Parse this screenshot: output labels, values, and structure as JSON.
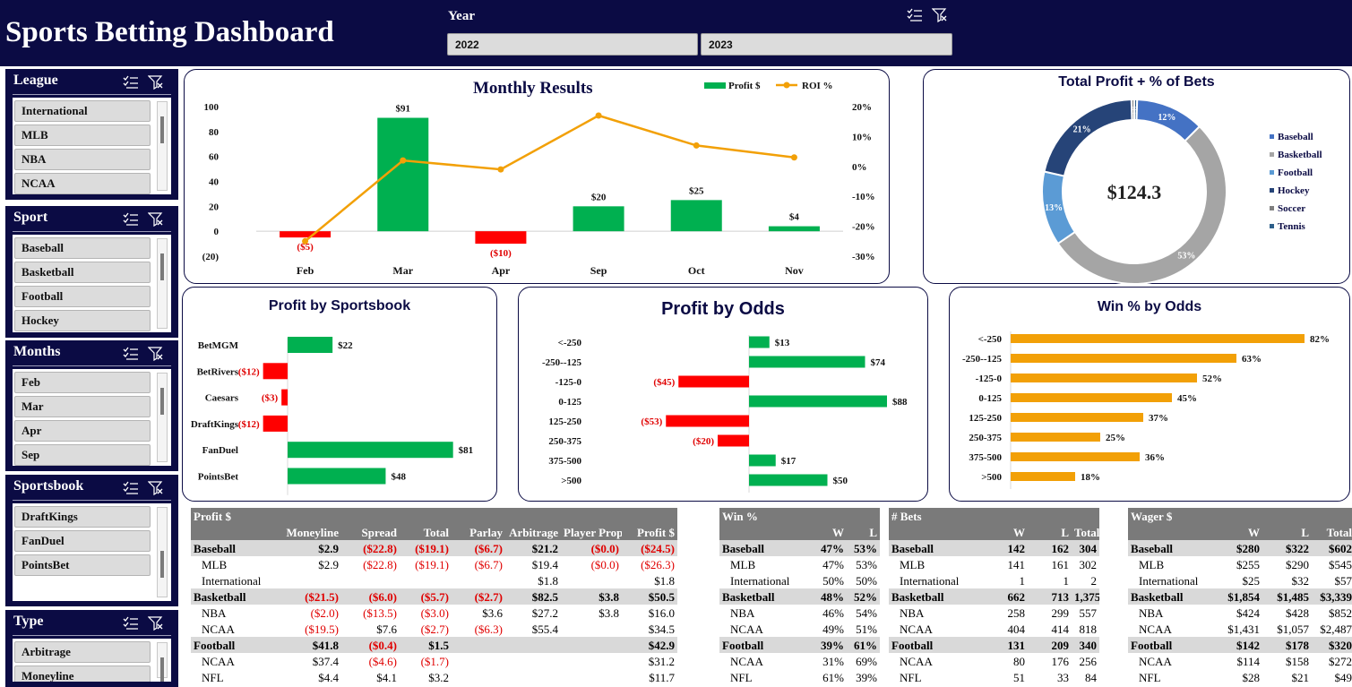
{
  "dashboard": {
    "title": "Sports Betting Dashboard"
  },
  "year_slicer": {
    "label": "Year",
    "options": [
      "2022",
      "2023"
    ]
  },
  "slicers": [
    {
      "id": "league",
      "title": "League",
      "items": [
        "International",
        "MLB",
        "NBA",
        "NCAA"
      ]
    },
    {
      "id": "sport",
      "title": "Sport",
      "items": [
        "Baseball",
        "Basketball",
        "Football",
        "Hockey"
      ]
    },
    {
      "id": "months",
      "title": "Months",
      "items": [
        "Feb",
        "Mar",
        "Apr",
        "Sep"
      ]
    },
    {
      "id": "sportsbook",
      "title": "Sportsbook",
      "items": [
        "DraftKings",
        "FanDuel",
        "PointsBet"
      ]
    },
    {
      "id": "type",
      "title": "Type",
      "items": [
        "Arbitrage",
        "Moneyline"
      ]
    }
  ],
  "colors": {
    "navy": "#0b0b44",
    "green": "#00b050",
    "red": "#ff0000",
    "orange": "#f2a007",
    "grey": "#7a7a7a"
  },
  "icons": [
    "multi-select-icon",
    "clear-filter-icon"
  ],
  "chart_data": [
    {
      "id": "monthly_results",
      "type": "bar",
      "title": "Monthly Results",
      "categories": [
        "Feb",
        "Mar",
        "Apr",
        "Sep",
        "Oct",
        "Nov"
      ],
      "series": [
        {
          "name": "Profit $",
          "type": "bar",
          "values": [
            -5,
            91,
            -10,
            20,
            25,
            4
          ],
          "labels": [
            "($5)",
            "$91",
            "($10)",
            "$20",
            "$25",
            "$4"
          ]
        },
        {
          "name": "ROI %",
          "type": "line",
          "axis": "secondary",
          "values": [
            -25,
            2,
            -1,
            17,
            7,
            3
          ]
        }
      ],
      "ylim": [
        -20,
        100
      ],
      "yticks": [
        "(20)",
        "0",
        "20",
        "40",
        "60",
        "80",
        "100"
      ],
      "y2lim": [
        -30,
        20
      ],
      "y2ticks": [
        "-30%",
        "-20%",
        "-10%",
        "0%",
        "10%",
        "20%"
      ],
      "legend": "top-right"
    },
    {
      "id": "total_profit",
      "type": "pie",
      "title": "Total Profit + % of Bets",
      "center_label": "$124.3",
      "categories": [
        "Baseball",
        "Basketball",
        "Football",
        "Hockey",
        "Soccer",
        "Tennis"
      ],
      "values": [
        12,
        53,
        13,
        21,
        0.5,
        0.5
      ],
      "labels": [
        "12%",
        "53%",
        "13%",
        "21%",
        "1%",
        "1%"
      ],
      "colors": [
        "#4472c4",
        "#a5a5a5",
        "#5b9bd5",
        "#264478",
        "#7f7f7f",
        "#2e5f8a"
      ],
      "legend": "right"
    },
    {
      "id": "profit_by_sportsbook",
      "type": "bar",
      "orientation": "horizontal",
      "title": "Profit by Sportsbook",
      "categories": [
        "BetMGM",
        "BetRivers",
        "Caesars",
        "DraftKings",
        "FanDuel",
        "PointsBet"
      ],
      "values": [
        22,
        -12,
        -3,
        -12,
        81,
        48
      ],
      "labels": [
        "$22",
        "($12)",
        "($3)",
        "($12)",
        "$81",
        "$48"
      ]
    },
    {
      "id": "profit_by_odds",
      "type": "bar",
      "orientation": "horizontal",
      "title": "Profit by Odds",
      "categories": [
        "<-250",
        "-250--125",
        "-125-0",
        "0-125",
        "125-250",
        "250-375",
        "375-500",
        ">500"
      ],
      "values": [
        13,
        74,
        -45,
        88,
        -53,
        -20,
        17,
        50
      ],
      "labels": [
        "$13",
        "$74",
        "($45)",
        "$88",
        "($53)",
        "($20)",
        "$17",
        "$50"
      ]
    },
    {
      "id": "win_pct_by_odds",
      "type": "bar",
      "orientation": "horizontal",
      "title": "Win % by Odds",
      "categories": [
        "<-250",
        "-250--125",
        "-125-0",
        "0-125",
        "125-250",
        "250-375",
        "375-500",
        ">500"
      ],
      "values": [
        82,
        63,
        52,
        45,
        37,
        25,
        36,
        18
      ],
      "labels": [
        "82%",
        "63%",
        "52%",
        "45%",
        "37%",
        "25%",
        "36%",
        "18%"
      ]
    }
  ],
  "tables": {
    "profit": {
      "title": "Profit $",
      "columns": [
        "Moneyline",
        "Spread",
        "Total",
        "Parlay",
        "Arbitrage",
        "Player Prop",
        "Profit $"
      ],
      "rows": [
        {
          "group": true,
          "label": "Baseball",
          "cells": [
            "$2.9",
            "($22.8)",
            "($19.1)",
            "($6.7)",
            "$21.2",
            "($0.0)",
            "($24.5)"
          ]
        },
        {
          "group": false,
          "label": "MLB",
          "cells": [
            "$2.9",
            "($22.8)",
            "($19.1)",
            "($6.7)",
            "$19.4",
            "($0.0)",
            "($26.3)"
          ]
        },
        {
          "group": false,
          "label": "International",
          "cells": [
            "",
            "",
            "",
            "",
            "$1.8",
            "",
            "$1.8"
          ]
        },
        {
          "group": true,
          "label": "Basketball",
          "cells": [
            "($21.5)",
            "($6.0)",
            "($5.7)",
            "($2.7)",
            "$82.5",
            "$3.8",
            "$50.5"
          ]
        },
        {
          "group": false,
          "label": "NBA",
          "cells": [
            "($2.0)",
            "($13.5)",
            "($3.0)",
            "$3.6",
            "$27.2",
            "$3.8",
            "$16.0"
          ]
        },
        {
          "group": false,
          "label": "NCAA",
          "cells": [
            "($19.5)",
            "$7.6",
            "($2.7)",
            "($6.3)",
            "$55.4",
            "",
            "$34.5"
          ]
        },
        {
          "group": true,
          "label": "Football",
          "cells": [
            "$41.8",
            "($0.4)",
            "$1.5",
            "",
            "",
            "",
            "$42.9"
          ]
        },
        {
          "group": false,
          "label": "NCAA",
          "cells": [
            "$37.4",
            "($4.6)",
            "($1.7)",
            "",
            "",
            "",
            "$31.2"
          ]
        },
        {
          "group": false,
          "label": "NFL",
          "cells": [
            "$4.4",
            "$4.1",
            "$3.2",
            "",
            "",
            "",
            "$11.7"
          ]
        }
      ]
    },
    "win_pct": {
      "title": "Win %",
      "columns": [
        "W",
        "L"
      ],
      "rows": [
        {
          "group": true,
          "label": "Baseball",
          "cells": [
            "47%",
            "53%"
          ]
        },
        {
          "group": false,
          "label": "MLB",
          "cells": [
            "47%",
            "53%"
          ]
        },
        {
          "group": false,
          "label": "International",
          "cells": [
            "50%",
            "50%"
          ]
        },
        {
          "group": true,
          "label": "Basketball",
          "cells": [
            "48%",
            "52%"
          ]
        },
        {
          "group": false,
          "label": "NBA",
          "cells": [
            "46%",
            "54%"
          ]
        },
        {
          "group": false,
          "label": "NCAA",
          "cells": [
            "49%",
            "51%"
          ]
        },
        {
          "group": true,
          "label": "Football",
          "cells": [
            "39%",
            "61%"
          ]
        },
        {
          "group": false,
          "label": "NCAA",
          "cells": [
            "31%",
            "69%"
          ]
        },
        {
          "group": false,
          "label": "NFL",
          "cells": [
            "61%",
            "39%"
          ]
        }
      ]
    },
    "num_bets": {
      "title": "# Bets",
      "columns": [
        "W",
        "L",
        "Total"
      ],
      "rows": [
        {
          "group": true,
          "label": "Baseball",
          "cells": [
            "142",
            "162",
            "304"
          ]
        },
        {
          "group": false,
          "label": "MLB",
          "cells": [
            "141",
            "161",
            "302"
          ]
        },
        {
          "group": false,
          "label": "International",
          "cells": [
            "1",
            "1",
            "2"
          ]
        },
        {
          "group": true,
          "label": "Basketball",
          "cells": [
            "662",
            "713",
            "1,375"
          ]
        },
        {
          "group": false,
          "label": "NBA",
          "cells": [
            "258",
            "299",
            "557"
          ]
        },
        {
          "group": false,
          "label": "NCAA",
          "cells": [
            "404",
            "414",
            "818"
          ]
        },
        {
          "group": true,
          "label": "Football",
          "cells": [
            "131",
            "209",
            "340"
          ]
        },
        {
          "group": false,
          "label": "NCAA",
          "cells": [
            "80",
            "176",
            "256"
          ]
        },
        {
          "group": false,
          "label": "NFL",
          "cells": [
            "51",
            "33",
            "84"
          ]
        }
      ]
    },
    "wager": {
      "title": "Wager $",
      "columns": [
        "W",
        "L",
        "Total"
      ],
      "rows": [
        {
          "group": true,
          "label": "Baseball",
          "cells": [
            "$280",
            "$322",
            "$602"
          ]
        },
        {
          "group": false,
          "label": "MLB",
          "cells": [
            "$255",
            "$290",
            "$545"
          ]
        },
        {
          "group": false,
          "label": "International",
          "cells": [
            "$25",
            "$32",
            "$57"
          ]
        },
        {
          "group": true,
          "label": "Basketball",
          "cells": [
            "$1,854",
            "$1,485",
            "$3,339"
          ]
        },
        {
          "group": false,
          "label": "NBA",
          "cells": [
            "$424",
            "$428",
            "$852"
          ]
        },
        {
          "group": false,
          "label": "NCAA",
          "cells": [
            "$1,431",
            "$1,057",
            "$2,487"
          ]
        },
        {
          "group": true,
          "label": "Football",
          "cells": [
            "$142",
            "$178",
            "$320"
          ]
        },
        {
          "group": false,
          "label": "NCAA",
          "cells": [
            "$114",
            "$158",
            "$272"
          ]
        },
        {
          "group": false,
          "label": "NFL",
          "cells": [
            "$28",
            "$21",
            "$49"
          ]
        }
      ]
    }
  }
}
